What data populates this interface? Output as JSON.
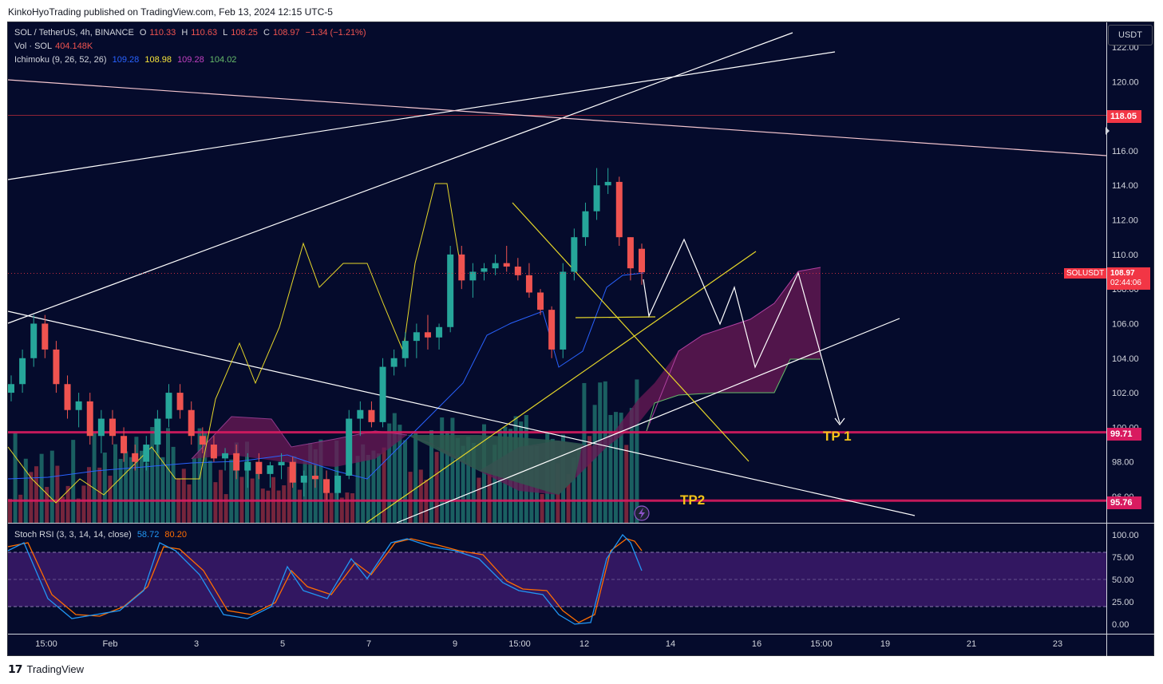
{
  "header": {
    "published": "KinkoHyoTrading published on TradingView.com, Feb 13, 2024 12:15 UTC-5"
  },
  "legend": {
    "symbol": "SOL / TetherUS, 4h, BINANCE",
    "o_label": "O",
    "o_value": "110.33",
    "h_label": "H",
    "h_value": "110.63",
    "l_label": "L",
    "l_value": "108.25",
    "c_label": "C",
    "c_value": "108.97",
    "change": "−1.34 (−1.21%)",
    "vol_label": "Vol · SOL",
    "vol_value": "404.148K",
    "ichimoku_label": "Ichimoku (9, 26, 52, 26)",
    "ichimoku_values": [
      "109.28",
      "108.98",
      "109.28",
      "104.02"
    ],
    "stoch_label": "Stoch RSI (3, 3, 14, 14, close)",
    "stoch_k": "58.72",
    "stoch_d": "80.20"
  },
  "currency_button": "USDT",
  "price_axis": {
    "ticks": [
      "122.00",
      "120.00",
      "118.00",
      "116.00",
      "114.00",
      "112.00",
      "110.00",
      "108.00",
      "106.00",
      "104.00",
      "102.00",
      "100.00",
      "98.00",
      "96.00"
    ],
    "tags": [
      {
        "label": "118.05",
        "color": "#f23645"
      },
      {
        "label": "99.71",
        "color": "#d81b60"
      },
      {
        "label": "95.76",
        "color": "#d81b60"
      }
    ],
    "current": {
      "symbol": "SOLUSDT",
      "price": "108.97",
      "countdown": "02:44:06",
      "color": "#f23645"
    }
  },
  "stoch_axis": {
    "ticks": [
      "100.00",
      "75.00",
      "50.00",
      "25.00",
      "0.00"
    ]
  },
  "time_axis": {
    "labels": [
      "15:00",
      "Feb",
      "3",
      "5",
      "7",
      "9",
      "15:00",
      "12",
      "14",
      "16",
      "15:00",
      "19",
      "21",
      "23"
    ]
  },
  "annotations": {
    "tp1": "TP 1",
    "tp2": "TP2"
  },
  "footer": {
    "brand": "TradingView"
  },
  "colors": {
    "background": "#050b2c",
    "up": "#26a69a",
    "down": "#ef5350",
    "yellow": "#e6d729",
    "cloud": "#7b1f5c",
    "accent": "#f5c518"
  },
  "chart_data": {
    "type": "candlestick",
    "title": "SOL / TetherUS, 4h, BINANCE",
    "ylim": [
      95,
      123
    ],
    "horizontal_levels": [
      118.05,
      99.71,
      95.76
    ],
    "candles": [
      [
        102,
        103,
        101.5,
        102.5
      ],
      [
        102.5,
        104.5,
        102,
        104
      ],
      [
        104,
        106.5,
        103.5,
        106
      ],
      [
        106,
        106.5,
        104,
        104.5
      ],
      [
        104.5,
        105,
        102,
        102.5
      ],
      [
        102.5,
        103,
        100.5,
        101
      ],
      [
        101,
        102,
        100,
        101.5
      ],
      [
        101.5,
        102,
        99,
        99.5
      ],
      [
        99.5,
        101,
        98.5,
        100.5
      ],
      [
        100.5,
        101,
        99,
        99.5
      ],
      [
        99.5,
        100,
        98,
        98.5
      ],
      [
        98.5,
        99,
        97.5,
        98
      ],
      [
        98,
        99.5,
        97.5,
        99
      ],
      [
        99,
        101,
        98.5,
        100.5
      ],
      [
        100.5,
        102.5,
        100,
        102
      ],
      [
        102,
        102.5,
        100.5,
        101
      ],
      [
        101,
        101.5,
        99,
        99.5
      ],
      [
        99.5,
        100,
        98.5,
        99
      ],
      [
        99,
        99.5,
        98,
        98.2
      ],
      [
        98.2,
        98.8,
        97.5,
        98.5
      ],
      [
        98.5,
        99,
        97,
        97.5
      ],
      [
        97.5,
        98.5,
        96.5,
        98
      ],
      [
        98,
        98.5,
        97,
        97.3
      ],
      [
        97.3,
        98,
        96.5,
        97.8
      ],
      [
        97.8,
        98.5,
        97,
        98
      ],
      [
        98,
        98.3,
        96.5,
        96.8
      ],
      [
        96.8,
        97.5,
        96,
        97.2
      ],
      [
        97.2,
        97.8,
        96.5,
        97
      ],
      [
        97,
        97.5,
        95.8,
        96.2
      ],
      [
        96.2,
        97.5,
        95.8,
        97.2
      ],
      [
        97.2,
        101,
        97,
        100.5
      ],
      [
        100.5,
        101.5,
        99.5,
        101
      ],
      [
        101,
        101.5,
        100,
        100.3
      ],
      [
        100.3,
        104,
        100,
        103.5
      ],
      [
        103.5,
        104.5,
        103,
        104
      ],
      [
        104,
        105.5,
        103.5,
        105
      ],
      [
        105,
        106,
        104,
        105.5
      ],
      [
        105.5,
        106.5,
        104.5,
        105.2
      ],
      [
        105.2,
        106,
        104.5,
        105.8
      ],
      [
        105.8,
        110.5,
        105.5,
        110
      ],
      [
        110,
        110.5,
        108,
        108.5
      ],
      [
        108.5,
        109.5,
        107.5,
        109
      ],
      [
        109,
        109.5,
        108.5,
        109.2
      ],
      [
        109.2,
        110,
        108.8,
        109.5
      ],
      [
        109.5,
        110.5,
        109,
        109.3
      ],
      [
        109.3,
        109.8,
        108.5,
        108.8
      ],
      [
        108.8,
        109.5,
        107.5,
        107.8
      ],
      [
        107.8,
        108,
        106.5,
        106.8
      ],
      [
        106.8,
        107,
        104,
        104.5
      ],
      [
        104.5,
        109.5,
        104,
        109
      ],
      [
        109,
        111.5,
        108.5,
        111
      ],
      [
        111,
        113,
        110.5,
        112.5
      ],
      [
        112.5,
        115,
        112,
        114
      ],
      [
        114,
        115,
        113.5,
        114.2
      ],
      [
        114.2,
        114.5,
        110.5,
        111
      ],
      [
        111,
        111,
        108.5,
        109.2
      ],
      [
        110.33,
        110.63,
        108.25,
        108.97
      ]
    ],
    "stoch_rsi": {
      "k": 58.72,
      "d": 80.2
    }
  }
}
